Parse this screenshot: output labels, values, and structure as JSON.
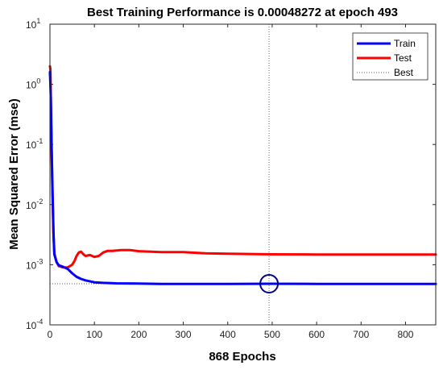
{
  "chart_data": {
    "type": "line",
    "title": "Best Training Performance is 0.00048272 at epoch 493",
    "xlabel": "868 Epochs",
    "ylabel": "Mean Squared Error  (mse)",
    "xlim": [
      0,
      868
    ],
    "ylim": [
      0.0001,
      10
    ],
    "yscale": "log",
    "x_ticks": [
      0,
      100,
      200,
      300,
      400,
      500,
      600,
      700,
      800
    ],
    "y_ticks": [
      {
        "value": 0.0001,
        "base": "10",
        "exp": "-4"
      },
      {
        "value": 0.001,
        "base": "10",
        "exp": "-3"
      },
      {
        "value": 0.01,
        "base": "10",
        "exp": "-2"
      },
      {
        "value": 0.1,
        "base": "10",
        "exp": "-1"
      },
      {
        "value": 1,
        "base": "10",
        "exp": "0"
      },
      {
        "value": 10,
        "base": "10",
        "exp": "1"
      }
    ],
    "legend_position": "top-right",
    "grid": false,
    "series": [
      {
        "name": "Train",
        "color": "#0000ff",
        "style": "solid",
        "x": [
          0,
          2,
          4,
          6,
          8,
          10,
          15,
          20,
          30,
          40,
          50,
          60,
          70,
          80,
          100,
          120,
          150,
          200,
          250,
          300,
          400,
          493,
          600,
          700,
          800,
          868
        ],
        "y": [
          1.6,
          0.6,
          0.08,
          0.015,
          0.0035,
          0.0015,
          0.0011,
          0.00098,
          0.00092,
          0.00085,
          0.00072,
          0.00063,
          0.00058,
          0.00055,
          0.00051,
          0.0005,
          0.00049,
          0.000485,
          0.00048,
          0.00048,
          0.00048,
          0.00048272,
          0.00048,
          0.00048,
          0.00048,
          0.00048
        ]
      },
      {
        "name": "Test",
        "color": "#ff0000",
        "style": "solid",
        "x": [
          0,
          1,
          2,
          4,
          6,
          8,
          10,
          15,
          20,
          30,
          40,
          50,
          55,
          60,
          65,
          70,
          75,
          80,
          90,
          100,
          110,
          120,
          130,
          140,
          160,
          180,
          200,
          250,
          300,
          350,
          400,
          500,
          600,
          700,
          800,
          868
        ],
        "y": [
          2.0,
          1.8,
          0.5,
          0.06,
          0.012,
          0.003,
          0.0015,
          0.0011,
          0.00095,
          0.0009,
          0.0009,
          0.001,
          0.00115,
          0.0014,
          0.0016,
          0.00165,
          0.0015,
          0.0014,
          0.00145,
          0.00135,
          0.0014,
          0.0016,
          0.0017,
          0.0017,
          0.00175,
          0.00175,
          0.00168,
          0.00162,
          0.00162,
          0.00155,
          0.00152,
          0.00149,
          0.00148,
          0.00148,
          0.00148,
          0.00148
        ]
      }
    ],
    "best": {
      "name": "Best",
      "epoch": 493,
      "value": 0.00048272,
      "color": "#000000",
      "style": "dotted",
      "marker": "circle"
    }
  }
}
